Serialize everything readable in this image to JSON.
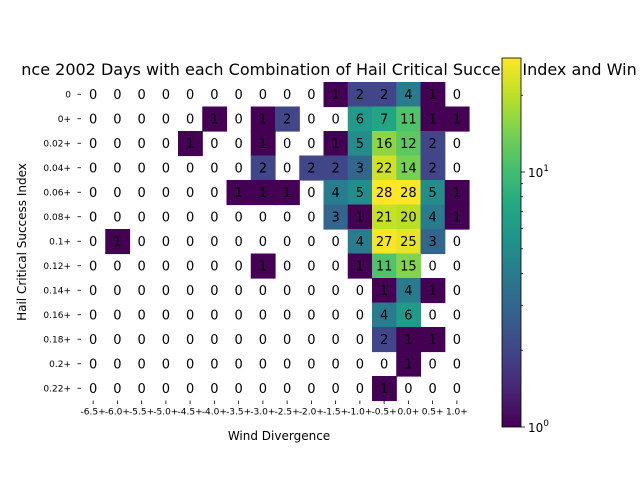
{
  "chart_data": {
    "type": "heatmap",
    "title": "nce 2002 Days with each Combination of Hail Critical Success Index and Win",
    "xlabel": "Wind Divergence",
    "ylabel": "Hail Critical Success Index",
    "x_categories": [
      "-6.5+",
      "-6.0+",
      "-5.5+",
      "-5.0+",
      "-4.5+",
      "-4.0+",
      "-3.5+",
      "-3.0+",
      "-2.5+",
      "-2.0+",
      "-1.5+",
      "-1.0+",
      "-0.5+",
      "0.0+",
      "0.5+",
      "1.0+"
    ],
    "y_categories": [
      "0",
      "0+",
      "0.02+",
      "0.04+",
      "0.06+",
      "0.08+",
      "0.1+",
      "0.12+",
      "0.14+",
      "0.16+",
      "0.18+",
      "0.2+",
      "0.22+"
    ],
    "values": [
      [
        0,
        0,
        0,
        0,
        0,
        0,
        0,
        0,
        0,
        0,
        1,
        2,
        2,
        4,
        1,
        0
      ],
      [
        0,
        0,
        0,
        0,
        0,
        1,
        0,
        1,
        2,
        0,
        0,
        6,
        7,
        11,
        1,
        1
      ],
      [
        0,
        0,
        0,
        0,
        1,
        0,
        0,
        1,
        0,
        0,
        1,
        5,
        16,
        12,
        2,
        0
      ],
      [
        0,
        0,
        0,
        0,
        0,
        0,
        0,
        2,
        0,
        2,
        2,
        3,
        22,
        14,
        2,
        0
      ],
      [
        0,
        0,
        0,
        0,
        0,
        0,
        1,
        1,
        1,
        0,
        4,
        5,
        28,
        28,
        5,
        1
      ],
      [
        0,
        0,
        0,
        0,
        0,
        0,
        0,
        0,
        0,
        0,
        3,
        1,
        21,
        20,
        4,
        1
      ],
      [
        0,
        1,
        0,
        0,
        0,
        0,
        0,
        0,
        0,
        0,
        0,
        4,
        27,
        25,
        3,
        0
      ],
      [
        0,
        0,
        0,
        0,
        0,
        0,
        0,
        1,
        0,
        0,
        0,
        1,
        11,
        15,
        0,
        0
      ],
      [
        0,
        0,
        0,
        0,
        0,
        0,
        0,
        0,
        0,
        0,
        0,
        0,
        1,
        4,
        1,
        0
      ],
      [
        0,
        0,
        0,
        0,
        0,
        0,
        0,
        0,
        0,
        0,
        0,
        0,
        4,
        6,
        0,
        0
      ],
      [
        0,
        0,
        0,
        0,
        0,
        0,
        0,
        0,
        0,
        0,
        0,
        0,
        2,
        1,
        1,
        0
      ],
      [
        0,
        0,
        0,
        0,
        0,
        0,
        0,
        0,
        0,
        0,
        0,
        0,
        0,
        1,
        0,
        0
      ],
      [
        0,
        0,
        0,
        0,
        0,
        0,
        0,
        0,
        0,
        0,
        0,
        0,
        1,
        0,
        0,
        0
      ]
    ],
    "colorbar": {
      "scale": "log",
      "min": 1,
      "max": 28,
      "colormap": "viridis",
      "tick_labels": [
        "10^0",
        "10^1"
      ]
    }
  }
}
